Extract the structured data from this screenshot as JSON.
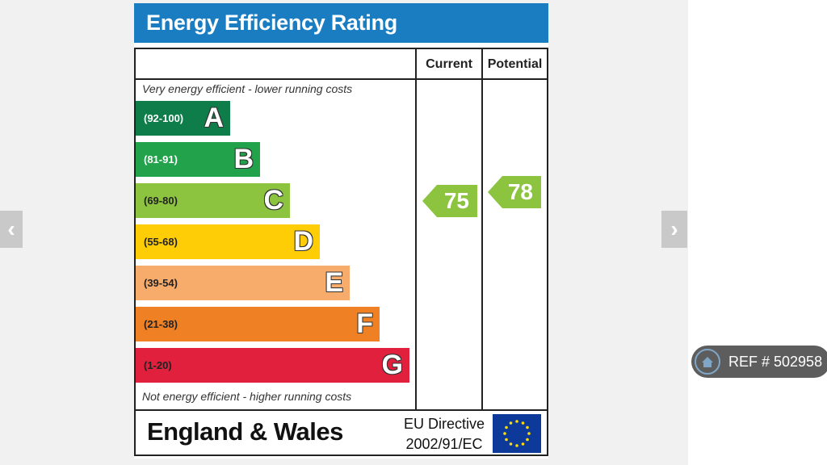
{
  "epc": {
    "title": "Energy Efficiency Rating",
    "header_current": "Current",
    "header_potential": "Potential",
    "top_note": "Very energy efficient - lower running costs",
    "bottom_note": "Not energy efficient - higher running costs",
    "bands": [
      {
        "range": "(92-100)",
        "letter": "A",
        "color": "#0e7d4a",
        "text_color": "#ffffff"
      },
      {
        "range": "(81-91)",
        "letter": "B",
        "color": "#21a24b",
        "text_color": "#ffffff"
      },
      {
        "range": "(69-80)",
        "letter": "C",
        "color": "#8cc43f",
        "text_color": "#222222"
      },
      {
        "range": "(55-68)",
        "letter": "D",
        "color": "#ffcd06",
        "text_color": "#222222"
      },
      {
        "range": "(39-54)",
        "letter": "E",
        "color": "#f7ac6c",
        "text_color": "#222222"
      },
      {
        "range": "(21-38)",
        "letter": "F",
        "color": "#ef8024",
        "text_color": "#222222"
      },
      {
        "range": "(1-20)",
        "letter": "G",
        "color": "#e0203c",
        "text_color": "#222222"
      }
    ],
    "current_rating": "75",
    "potential_rating": "78",
    "rating_arrow_color": "#8cc43f",
    "country": "England & Wales",
    "directive_line1": "EU Directive",
    "directive_line2": "2002/91/EC"
  },
  "nav": {
    "prev_icon": "chevron-left-icon",
    "next_icon": "chevron-right-icon"
  },
  "ref_badge": {
    "icon": "home-icon",
    "text": "REF # 502958"
  }
}
